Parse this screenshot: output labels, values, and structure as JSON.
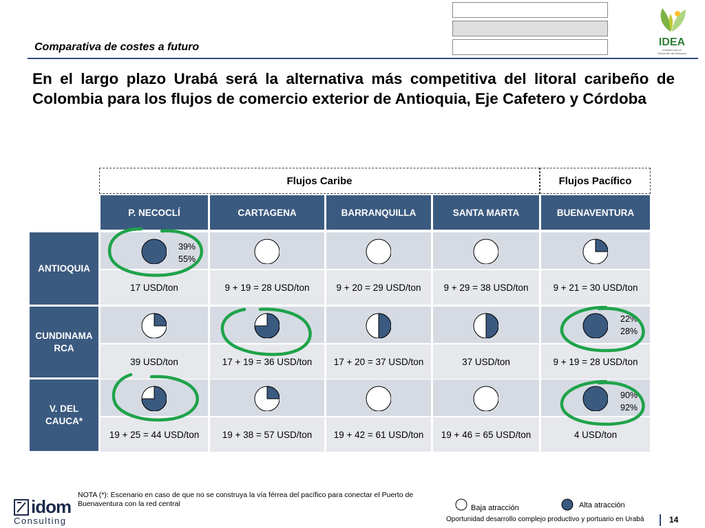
{
  "header": {
    "section_title": "Comparativa de costes a futuro",
    "headline": "En el largo plazo Urabá será la alternativa más competitiva del litoral caribeño de Colombia para los flujos de comercio exterior de Antioquia, Eje Cafetero y Córdoba",
    "logo": {
      "name": "IDEA",
      "subtitle": "Instituto para el Desarrollo de Antioquia"
    }
  },
  "table": {
    "groups": [
      "Flujos Caribe",
      "Flujos Pacífico"
    ],
    "columns": [
      "P. NECOCLÍ",
      "CARTAGENA",
      "BARRANQUILLA",
      "SANTA MARTA",
      "BUENAVENTURA"
    ],
    "rows": [
      {
        "label": "ANTIOQUIA",
        "attraction": [
          1,
          0,
          0,
          0,
          0.25
        ],
        "costs": [
          "17 USD/ton",
          "9 + 19 = 28 USD/ton",
          "9 + 20 = 29 USD/ton",
          "9 + 29 = 38 USD/ton",
          "9 + 21 = 30 USD/ton"
        ],
        "pct": [
          "39%",
          "55%"
        ]
      },
      {
        "label": "CUNDINAMARCA",
        "label_lines": [
          "CUNDINAMA",
          "RCA"
        ],
        "attraction": [
          0.25,
          0.75,
          0.5,
          0.5,
          1
        ],
        "costs": [
          "39 USD/ton",
          "17 + 19 = 36 USD/ton",
          "17 + 20 = 37 USD/ton",
          "37 USD/ton",
          "9 + 19 = 28 USD/ton"
        ],
        "pct": [
          "22%",
          "28%"
        ]
      },
      {
        "label": "V. DEL CAUCA*",
        "label_lines": [
          "V. DEL",
          "CAUCA*"
        ],
        "attraction": [
          0.75,
          0.25,
          0,
          0,
          1
        ],
        "costs": [
          "19 + 25 = 44 USD/ton",
          "19 + 38 = 57 USD/ton",
          "19 + 42 = 61 USD/ton",
          "19 + 46 = 65 USD/ton",
          "4 USD/ton"
        ],
        "pct": [
          "90%",
          "92%"
        ]
      }
    ]
  },
  "note": "NOTA (*): Escenario en caso de que  no se construya la vía férrea del pacífico para conectar el Puerto de Buenaventura con la red central",
  "legend": {
    "low": "Baja atracción",
    "high": "Alta atracción"
  },
  "footer": {
    "company": "idom",
    "company_sub": "Consulting",
    "text": "Oportunidad desarrollo complejo productivo y portuario en Urabá",
    "page": "14"
  },
  "colors": {
    "header_blue": "#3b5a80",
    "pie_fill": "#3b5a80",
    "highlight_green": "#1fa34a",
    "rule_blue": "#2f4a7a"
  }
}
